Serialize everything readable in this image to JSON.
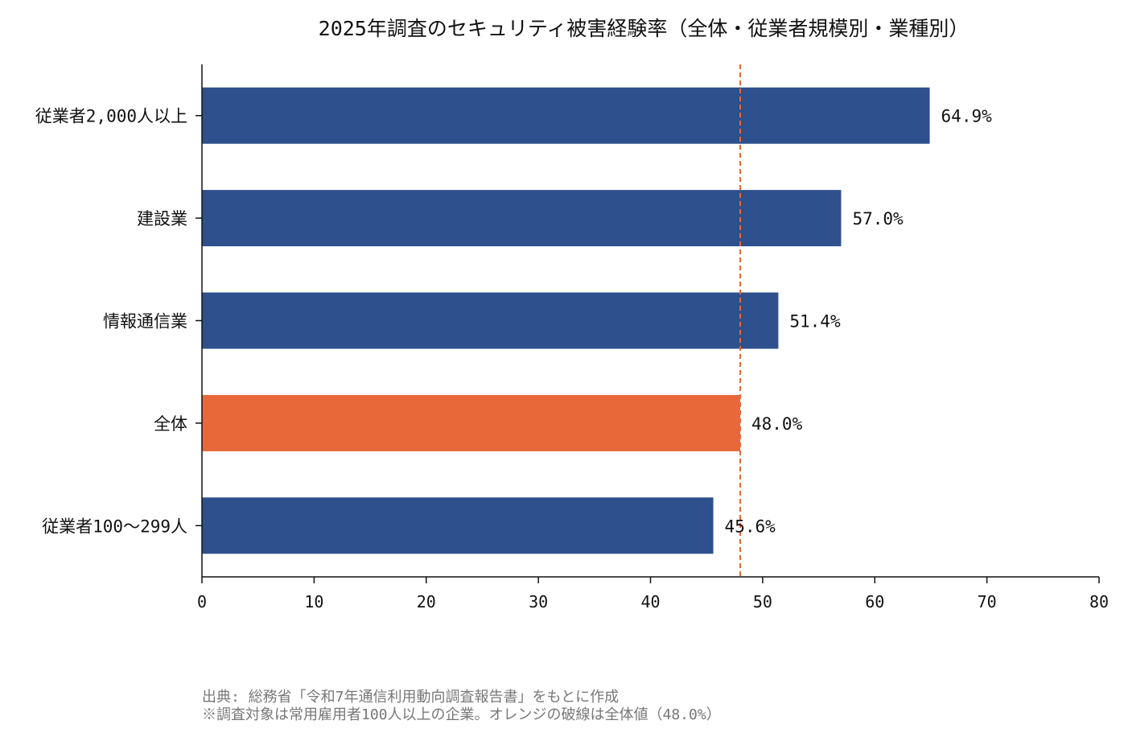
{
  "chart_data": {
    "type": "bar",
    "orientation": "horizontal",
    "title": "2025年調査のセキュリティ被害経験率（全体・従業者規模別・業種別）",
    "xlabel": "",
    "ylabel": "",
    "xlim": [
      0,
      80
    ],
    "xticks": [
      0,
      10,
      20,
      30,
      40,
      50,
      60,
      70,
      80
    ],
    "categories": [
      "従業者2,000人以上",
      "建設業",
      "情報通信業",
      "全体",
      "従業者100〜299人"
    ],
    "values": [
      64.9,
      57.0,
      51.4,
      48.0,
      45.6
    ],
    "value_labels": [
      "64.9%",
      "57.0%",
      "51.4%",
      "48.0%",
      "45.6%"
    ],
    "highlight_category": "全体",
    "reference_line": {
      "value": 48.0,
      "style": "dashed",
      "color": "#e8683a"
    },
    "grid": false,
    "legend": "none",
    "colors": {
      "bar": "#2e508c",
      "highlight": "#e8683a",
      "axis": "#111111"
    }
  },
  "footnote": {
    "line1": "出典: 総務省「令和7年通信利用動向調査報告書」をもとに作成",
    "line2": "※調査対象は常用雇用者100人以上の企業。オレンジの破線は全体値（48.0%）"
  }
}
